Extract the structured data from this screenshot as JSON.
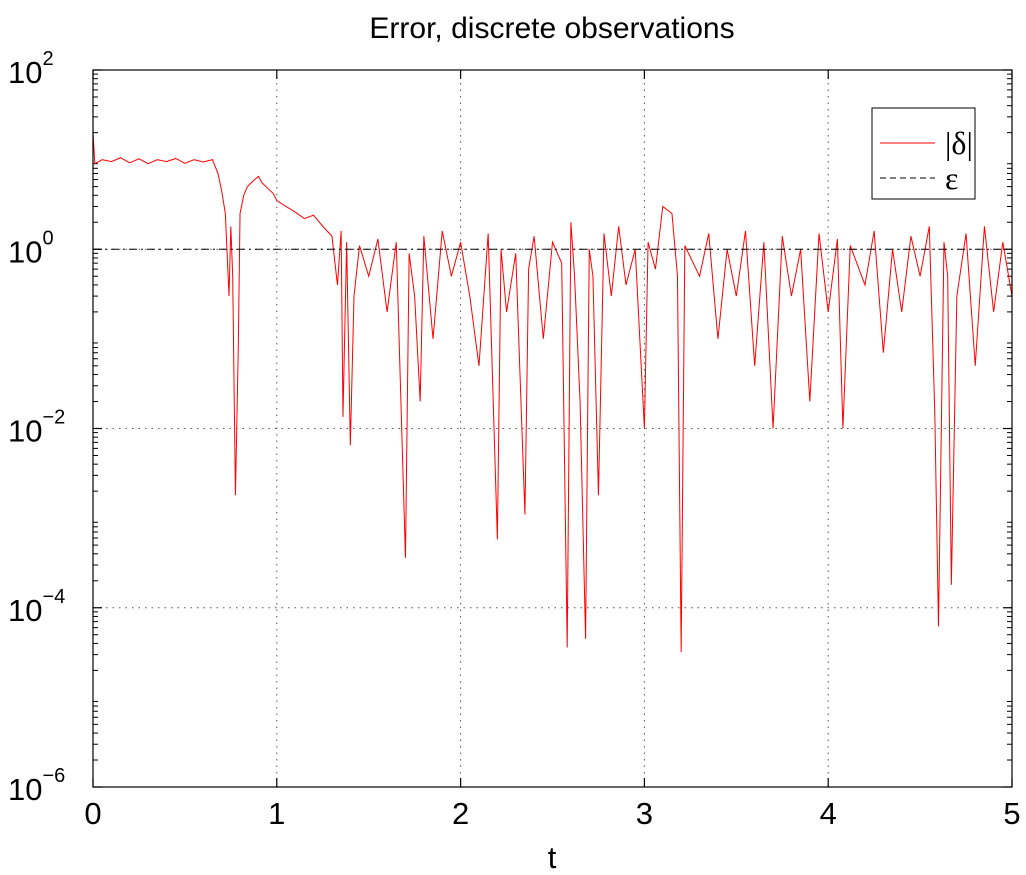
{
  "chart_data": {
    "type": "line",
    "title": "Error, discrete observations",
    "xlabel": "t",
    "ylabel": "",
    "xlim": [
      0,
      5
    ],
    "ylim": [
      1e-06,
      100
    ],
    "yscale": "log",
    "grid": true,
    "legend_position": "top-right",
    "x_ticks": [
      "0",
      "1",
      "2",
      "3",
      "4",
      "5"
    ],
    "y_ticks": [
      {
        "base": "10",
        "exp": "2",
        "value": 100
      },
      {
        "base": "10",
        "exp": "0",
        "value": 1
      },
      {
        "base": "10",
        "exp": "−2",
        "value": 0.01
      },
      {
        "base": "10",
        "exp": "−4",
        "value": 0.0001
      },
      {
        "base": "10",
        "exp": "−6",
        "value": 1e-06
      }
    ],
    "series": [
      {
        "name": "|δ|",
        "color": "#ff0000",
        "style": "solid",
        "points": [
          [
            0.0,
            20
          ],
          [
            0.01,
            9
          ],
          [
            0.05,
            10
          ],
          [
            0.1,
            9.5
          ],
          [
            0.15,
            10.5
          ],
          [
            0.2,
            9.2
          ],
          [
            0.25,
            10.2
          ],
          [
            0.3,
            9
          ],
          [
            0.35,
            10
          ],
          [
            0.4,
            9.5
          ],
          [
            0.45,
            10.3
          ],
          [
            0.5,
            9.1
          ],
          [
            0.55,
            10
          ],
          [
            0.6,
            9.4
          ],
          [
            0.65,
            10
          ],
          [
            0.68,
            7
          ],
          [
            0.7,
            4.5
          ],
          [
            0.72,
            2.5
          ],
          [
            0.74,
            0.3
          ],
          [
            0.75,
            1.8
          ],
          [
            0.76,
            0.5
          ],
          [
            0.775,
            0.0018
          ],
          [
            0.79,
            0.07
          ],
          [
            0.8,
            2.5
          ],
          [
            0.82,
            4
          ],
          [
            0.84,
            5
          ],
          [
            0.86,
            5.5
          ],
          [
            0.88,
            6
          ],
          [
            0.9,
            6.5
          ],
          [
            0.92,
            5.5
          ],
          [
            0.95,
            4.8
          ],
          [
            0.98,
            4.2
          ],
          [
            1.0,
            3.5
          ],
          [
            1.05,
            3
          ],
          [
            1.1,
            2.6
          ],
          [
            1.15,
            2.2
          ],
          [
            1.2,
            2.4
          ],
          [
            1.25,
            1.8
          ],
          [
            1.3,
            1.4
          ],
          [
            1.33,
            0.4
          ],
          [
            1.35,
            1.6
          ],
          [
            1.36,
            0.0135
          ],
          [
            1.38,
            1.2
          ],
          [
            1.4,
            0.0065
          ],
          [
            1.42,
            0.3
          ],
          [
            1.45,
            1.1
          ],
          [
            1.5,
            0.5
          ],
          [
            1.55,
            1.3
          ],
          [
            1.6,
            0.2
          ],
          [
            1.65,
            1.2
          ],
          [
            1.7,
            0.00036
          ],
          [
            1.72,
            0.9
          ],
          [
            1.75,
            0.3
          ],
          [
            1.78,
            0.02
          ],
          [
            1.8,
            1.4
          ],
          [
            1.85,
            0.1
          ],
          [
            1.9,
            1.6
          ],
          [
            1.95,
            0.5
          ],
          [
            2.0,
            1.2
          ],
          [
            2.05,
            0.3
          ],
          [
            2.1,
            0.05
          ],
          [
            2.15,
            1.5
          ],
          [
            2.2,
            0.00058
          ],
          [
            2.22,
            1.0
          ],
          [
            2.25,
            0.2
          ],
          [
            2.3,
            0.9
          ],
          [
            2.35,
            0.0011
          ],
          [
            2.37,
            0.6
          ],
          [
            2.4,
            1.4
          ],
          [
            2.45,
            0.1
          ],
          [
            2.5,
            1.2
          ],
          [
            2.55,
            0.7
          ],
          [
            2.58,
            3.6e-05
          ],
          [
            2.6,
            2.0
          ],
          [
            2.62,
            0.5
          ],
          [
            2.65,
            0.02
          ],
          [
            2.68,
            4.5e-05
          ],
          [
            2.7,
            1.0
          ],
          [
            2.72,
            0.5
          ],
          [
            2.75,
            0.0018
          ],
          [
            2.78,
            1.5
          ],
          [
            2.82,
            0.3
          ],
          [
            2.86,
            1.8
          ],
          [
            2.9,
            0.4
          ],
          [
            2.95,
            1.0
          ],
          [
            3.0,
            0.01
          ],
          [
            3.02,
            1.2
          ],
          [
            3.06,
            0.6
          ],
          [
            3.1,
            3.0
          ],
          [
            3.15,
            2.5
          ],
          [
            3.18,
            0.5
          ],
          [
            3.2,
            3.2e-05
          ],
          [
            3.22,
            1.1
          ],
          [
            3.3,
            0.5
          ],
          [
            3.35,
            1.5
          ],
          [
            3.4,
            0.1
          ],
          [
            3.45,
            1.0
          ],
          [
            3.5,
            0.3
          ],
          [
            3.55,
            1.6
          ],
          [
            3.6,
            0.05
          ],
          [
            3.65,
            1.2
          ],
          [
            3.7,
            0.01
          ],
          [
            3.75,
            1.4
          ],
          [
            3.8,
            0.3
          ],
          [
            3.85,
            1.0
          ],
          [
            3.9,
            0.02
          ],
          [
            3.95,
            1.5
          ],
          [
            4.0,
            0.2
          ],
          [
            4.05,
            1.3
          ],
          [
            4.08,
            0.01
          ],
          [
            4.12,
            1.1
          ],
          [
            4.2,
            0.4
          ],
          [
            4.25,
            1.6
          ],
          [
            4.3,
            0.07
          ],
          [
            4.35,
            1.0
          ],
          [
            4.4,
            0.2
          ],
          [
            4.45,
            1.4
          ],
          [
            4.5,
            0.5
          ],
          [
            4.55,
            1.8
          ],
          [
            4.58,
            0.015
          ],
          [
            4.6,
            6.2e-05
          ],
          [
            4.63,
            1.2
          ],
          [
            4.65,
            0.5
          ],
          [
            4.67,
            0.00018
          ],
          [
            4.7,
            0.3
          ],
          [
            4.75,
            1.5
          ],
          [
            4.8,
            0.05
          ],
          [
            4.85,
            1.8
          ],
          [
            4.9,
            0.2
          ],
          [
            4.95,
            1.2
          ],
          [
            5.0,
            0.3
          ]
        ]
      },
      {
        "name": "ε",
        "color": "#000000",
        "style": "dashed",
        "points": [
          [
            0,
            1
          ],
          [
            5,
            1
          ]
        ]
      }
    ]
  }
}
